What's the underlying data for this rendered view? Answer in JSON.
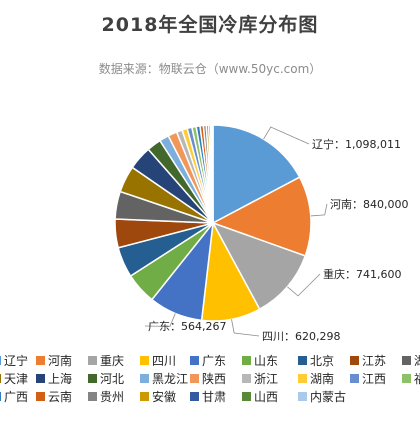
{
  "chart_data": {
    "type": "pie",
    "title": "2018年全国冷库分布图",
    "subtitle": "数据来源：物联云仓（www.50yc.com）",
    "legend_position": "bottom",
    "slices": [
      {
        "name": "辽宁",
        "value": 1098011,
        "color": "#5b9bd5",
        "label": "辽宁：1,098,011"
      },
      {
        "name": "河南",
        "value": 840000,
        "color": "#ed7d31",
        "label": "河南：840,000"
      },
      {
        "name": "重庆",
        "value": 741600,
        "color": "#a5a5a5",
        "label": "重庆：741,600"
      },
      {
        "name": "四川",
        "value": 620298,
        "color": "#ffc000",
        "label": "四川：620,298"
      },
      {
        "name": "广东",
        "value": 564267,
        "color": "#4472c4",
        "label": "广东：564,267"
      },
      {
        "name": "山东",
        "value": 330000,
        "color": "#70ad47",
        "label": ""
      },
      {
        "name": "北京",
        "value": 320000,
        "color": "#255e91",
        "label": ""
      },
      {
        "name": "江苏",
        "value": 300000,
        "color": "#9e480e",
        "label": ""
      },
      {
        "name": "湖",
        "value": 290000,
        "color": "#636363",
        "label": ""
      },
      {
        "name": "天津",
        "value": 280000,
        "color": "#997300",
        "label": ""
      },
      {
        "name": "上海",
        "value": 250000,
        "color": "#264478",
        "label": ""
      },
      {
        "name": "河北",
        "value": 150000,
        "color": "#43682b",
        "label": ""
      },
      {
        "name": "黑龙江",
        "value": 100000,
        "color": "#7cafdd",
        "label": ""
      },
      {
        "name": "陕西",
        "value": 95000,
        "color": "#f1975a",
        "label": ""
      },
      {
        "name": "浙江",
        "value": 60000,
        "color": "#b7b7b7",
        "label": ""
      },
      {
        "name": "湖南",
        "value": 55000,
        "color": "#ffcd33",
        "label": ""
      },
      {
        "name": "江西",
        "value": 50000,
        "color": "#698ed0",
        "label": ""
      },
      {
        "name": "福",
        "value": 45000,
        "color": "#8cc168",
        "label": ""
      },
      {
        "name": "广西",
        "value": 40000,
        "color": "#327dc2",
        "label": ""
      },
      {
        "name": "云南",
        "value": 35000,
        "color": "#d26012",
        "label": ""
      },
      {
        "name": "贵州",
        "value": 30000,
        "color": "#848484",
        "label": ""
      },
      {
        "name": "安徽",
        "value": 25000,
        "color": "#cc9a00",
        "label": ""
      },
      {
        "name": "甘肃",
        "value": 20000,
        "color": "#335aa1",
        "label": ""
      },
      {
        "name": "山西",
        "value": 15000,
        "color": "#5a8a39",
        "label": ""
      },
      {
        "name": "内蒙古",
        "value": 10000,
        "color": "#a9caea",
        "label": ""
      }
    ]
  }
}
